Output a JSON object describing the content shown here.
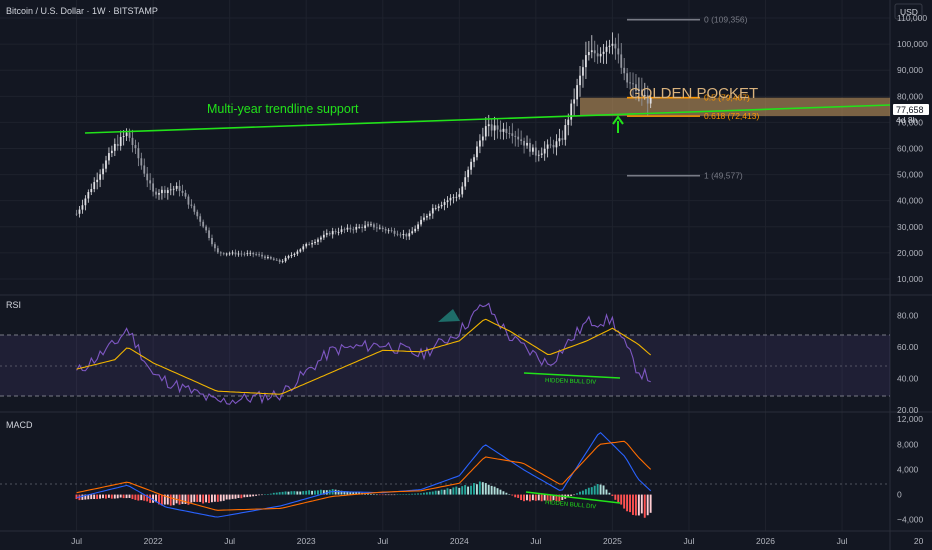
{
  "header": {
    "symbol_title": "Bitcoin / U.S. Dollar · 1W · BITSTAMP",
    "currency_button": "USD"
  },
  "price_scale": {
    "ticks": [
      "110,000",
      "100,000",
      "90,000",
      "80,000",
      "70,000",
      "60,000",
      "50,000",
      "40,000",
      "30,000",
      "20,000",
      "10,000"
    ],
    "current_price": "77,658",
    "countdown": "4d 8h"
  },
  "rsi_scale": {
    "ticks": [
      "80.00",
      "60.00",
      "40.00",
      "20.00"
    ]
  },
  "macd_scale": {
    "ticks": [
      "12,000",
      "8,000",
      "4,000",
      "0",
      "−4,000"
    ]
  },
  "time_axis": {
    "ticks": [
      "Jul",
      "2022",
      "Jul",
      "2023",
      "Jul",
      "2024",
      "Jul",
      "2025",
      "Jul",
      "2026",
      "Jul",
      "20"
    ]
  },
  "panes": {
    "rsi_label": "RSI",
    "macd_label": "MACD"
  },
  "annotations": {
    "trendline_label": "Multi-year trendline support",
    "golden_pocket_label": "GOLDEN POCKET",
    "rsi_divergence_label": "HIDDEN BULL DIV",
    "macd_divergence_label": "HIDDEN BULL DIV"
  },
  "fib_levels": [
    {
      "label": "0 (109,356)",
      "price": 109356,
      "color": "#787b86"
    },
    {
      "label": "0.5 (79,467)",
      "price": 79467,
      "color": "#ff9800"
    },
    {
      "label": "0.618 (72,413)",
      "price": 72413,
      "color": "#ff9800"
    },
    {
      "label": "1 (49,577)",
      "price": 49577,
      "color": "#787b86"
    }
  ],
  "colors": {
    "background": "#131722",
    "trendline": "#22e21a",
    "golden_pocket": "#d0a060",
    "candle": "#c8c8cc",
    "rsi_line": "#7e57c2",
    "rsi_ma": "#f0b400",
    "macd_line": "#2962ff",
    "signal_line": "#ff6d00",
    "hist_pos_strong": "#26a69a",
    "hist_pos_weak": "#b2dfdb",
    "hist_neg_strong": "#ff5252",
    "hist_neg_weak": "#ffcdd2"
  },
  "chart_data": [
    {
      "type": "candlestick",
      "title": "Bitcoin / U.S. Dollar · 1W · BITSTAMP",
      "ylabel": "USD",
      "ylim": [
        5000,
        115000
      ],
      "x": [
        "2021-07",
        "2021-10",
        "2021-11",
        "2022-01",
        "2022-03",
        "2022-05",
        "2022-06",
        "2022-09",
        "2022-11",
        "2023-01",
        "2023-03",
        "2023-06",
        "2023-09",
        "2023-11",
        "2024-01",
        "2024-03",
        "2024-05",
        "2024-07",
        "2024-09",
        "2024-11",
        "2024-12",
        "2025-01",
        "2025-02",
        "2025-03",
        "2025-04"
      ],
      "close": [
        35000,
        61000,
        66000,
        43000,
        45000,
        30000,
        20000,
        19500,
        16500,
        23000,
        28000,
        30500,
        26500,
        37500,
        42500,
        68000,
        67000,
        58000,
        63000,
        96000,
        97000,
        102000,
        86000,
        82000,
        77658
      ]
    },
    {
      "type": "line",
      "title": "RSI",
      "ylim": [
        20,
        90
      ],
      "x": [
        "2021-07",
        "2021-10",
        "2021-11",
        "2022-01",
        "2022-06",
        "2022-11",
        "2023-03",
        "2023-07",
        "2023-10",
        "2024-01",
        "2024-03",
        "2024-05",
        "2024-08",
        "2024-11",
        "2025-01",
        "2025-03",
        "2025-04"
      ],
      "series": [
        {
          "values": [
            44,
            62,
            72,
            42,
            25,
            30,
            58,
            62,
            55,
            70,
            88,
            66,
            49,
            76,
            77,
            45,
            40
          ]
        },
        {
          "values": [
            46,
            52,
            60,
            50,
            32,
            30,
            44,
            58,
            57,
            64,
            78,
            70,
            55,
            64,
            72,
            62,
            55
          ]
        }
      ],
      "bands": [
        30,
        50,
        70
      ]
    },
    {
      "type": "bar",
      "title": "MACD",
      "ylim": [
        -5000,
        12500
      ],
      "x": [
        "2021-07",
        "2021-11",
        "2022-02",
        "2022-06",
        "2022-11",
        "2023-03",
        "2023-07",
        "2023-10",
        "2024-01",
        "2024-03",
        "2024-06",
        "2024-09",
        "2024-12",
        "2025-02",
        "2025-03",
        "2025-04"
      ],
      "series": [
        {
          "values": [
            -500,
            1500,
            -2000,
            -3600,
            -1800,
            500,
            300,
            800,
            3000,
            8000,
            4000,
            500,
            10000,
            6000,
            2500,
            600
          ]
        },
        {
          "values": [
            300,
            2000,
            -300,
            -2500,
            -2200,
            -300,
            400,
            600,
            1800,
            6000,
            5000,
            1500,
            8000,
            8500,
            6000,
            4000
          ]
        },
        {
          "values": [
            -800,
            -500,
            -1700,
            -1100,
            400,
            800,
            -100,
            200,
            1200,
            2000,
            -1000,
            -1000,
            2000,
            -2500,
            -3500,
            -3400
          ]
        }
      ]
    }
  ]
}
